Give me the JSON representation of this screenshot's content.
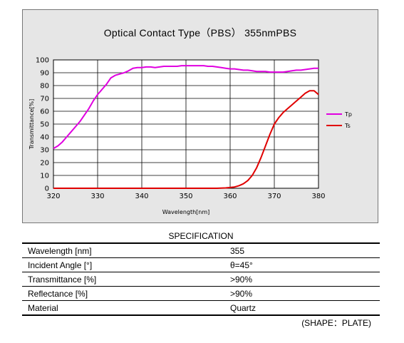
{
  "chart_data": {
    "type": "line",
    "title": "Optical Contact Type（PBS） 355nmPBS",
    "xlabel": "Wavelength[nm]",
    "ylabel": "Transmittance[%]",
    "xlim": [
      320,
      380
    ],
    "ylim": [
      0,
      100
    ],
    "x_ticks": [
      320,
      330,
      340,
      350,
      360,
      370,
      380
    ],
    "y_ticks": [
      0,
      10,
      20,
      30,
      40,
      50,
      60,
      70,
      80,
      90,
      100
    ],
    "grid": true,
    "legend": "right",
    "series": [
      {
        "name": "Tp",
        "color": "#e000e0",
        "x": [
          320,
          321,
          322,
          323,
          324,
          325,
          326,
          327,
          328,
          329,
          330,
          331,
          332,
          333,
          334,
          335,
          336,
          337,
          338,
          339,
          340,
          341,
          342,
          343,
          344,
          345,
          346,
          347,
          348,
          349,
          350,
          351,
          352,
          353,
          354,
          355,
          356,
          357,
          358,
          359,
          360,
          361,
          362,
          363,
          364,
          365,
          366,
          367,
          368,
          369,
          370,
          371,
          372,
          373,
          374,
          375,
          376,
          377,
          378,
          379,
          380
        ],
        "values": [
          31,
          33,
          36,
          40,
          44,
          48,
          52,
          57,
          62,
          68,
          73,
          77,
          81,
          86,
          88,
          89,
          90,
          91.5,
          93.5,
          94,
          94,
          94.5,
          94.5,
          94,
          94.5,
          95,
          95,
          95,
          95,
          95.5,
          95.5,
          95.5,
          95.5,
          95.5,
          95.5,
          95,
          95,
          94.5,
          94,
          93.5,
          93,
          93,
          92.5,
          92,
          92,
          91.5,
          91,
          91,
          91,
          90.5,
          90.5,
          90.5,
          90.5,
          91,
          91.5,
          92,
          92,
          92.5,
          93,
          93.5,
          93.5
        ]
      },
      {
        "name": "Ts",
        "color": "#e00000",
        "x": [
          320,
          330,
          340,
          350,
          355,
          357,
          358,
          359,
          360,
          361,
          362,
          363,
          364,
          365,
          366,
          367,
          368,
          369,
          370,
          371,
          372,
          373,
          374,
          375,
          376,
          377,
          378,
          379,
          380
        ],
        "values": [
          0,
          0,
          0,
          0,
          0,
          0,
          0.1,
          0.3,
          0.6,
          1,
          2,
          3.5,
          6,
          10,
          16,
          24,
          33,
          42,
          50,
          55,
          59,
          62,
          65,
          68,
          71,
          74,
          76,
          76,
          73
        ]
      }
    ]
  },
  "specification": {
    "heading": "SPECIFICATION",
    "rows": [
      {
        "label": "Wavelength [nm]",
        "value": "355"
      },
      {
        "label": "Incident Angle [°]",
        "value": "θ=45°"
      },
      {
        "label": "Transmittance [%]",
        "value": ">90%"
      },
      {
        "label": "Reflectance [%]",
        "value": ">90%"
      },
      {
        "label": "Material",
        "value": "Quartz"
      }
    ],
    "shape_note": "(SHAPE：PLATE)"
  }
}
